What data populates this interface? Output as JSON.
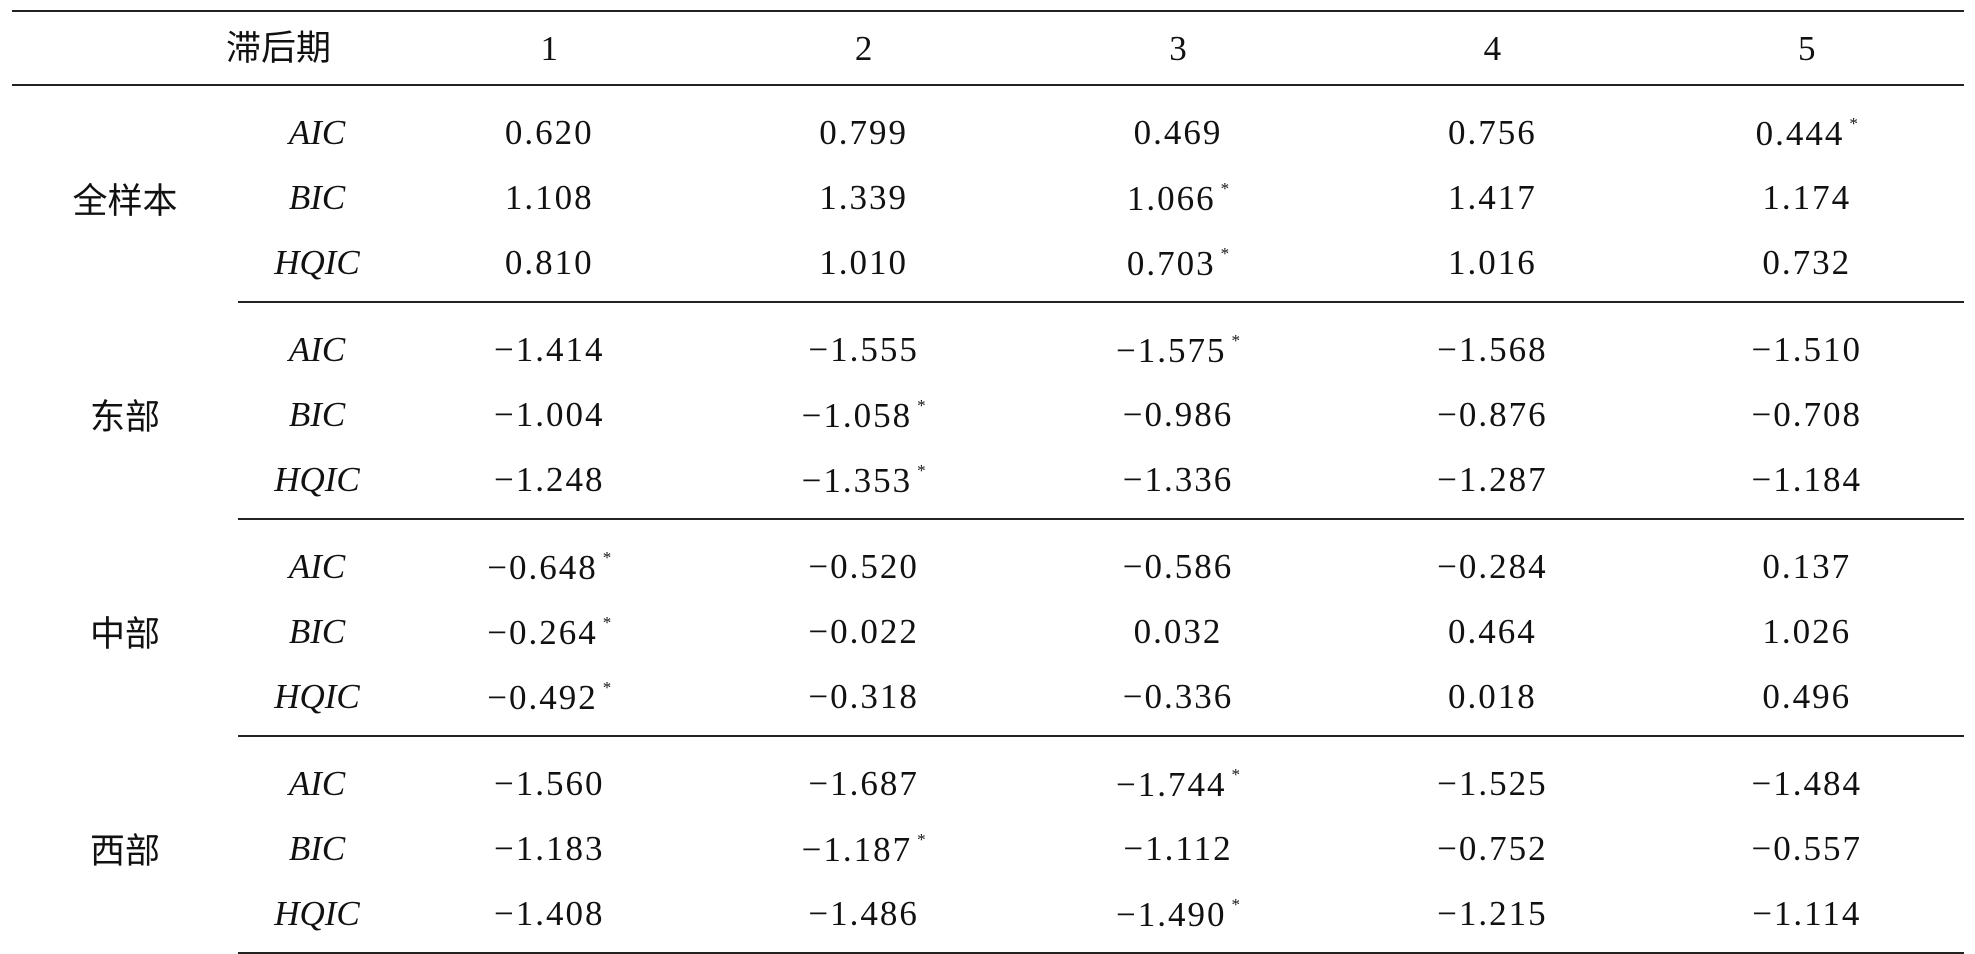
{
  "header": {
    "lag_label": "滞后期",
    "lags": [
      "1",
      "2",
      "3",
      "4",
      "5"
    ]
  },
  "groups": [
    {
      "region": "全样本",
      "rows": [
        {
          "criterion": "AIC",
          "values": [
            {
              "v": "0.620",
              "star": ""
            },
            {
              "v": "0.799",
              "star": ""
            },
            {
              "v": "0.469",
              "star": ""
            },
            {
              "v": "0.756",
              "star": ""
            },
            {
              "v": "0.444",
              "star": "*"
            }
          ]
        },
        {
          "criterion": "BIC",
          "values": [
            {
              "v": "1.108",
              "star": ""
            },
            {
              "v": "1.339",
              "star": ""
            },
            {
              "v": "1.066",
              "star": "*"
            },
            {
              "v": "1.417",
              "star": ""
            },
            {
              "v": "1.174",
              "star": ""
            }
          ]
        },
        {
          "criterion": "HQIC",
          "values": [
            {
              "v": "0.810",
              "star": ""
            },
            {
              "v": "1.010",
              "star": ""
            },
            {
              "v": "0.703",
              "star": "*"
            },
            {
              "v": "1.016",
              "star": ""
            },
            {
              "v": "0.732",
              "star": ""
            }
          ]
        }
      ]
    },
    {
      "region": "东部",
      "rows": [
        {
          "criterion": "AIC",
          "values": [
            {
              "v": "−1.414",
              "star": ""
            },
            {
              "v": "−1.555",
              "star": ""
            },
            {
              "v": "−1.575",
              "star": "*"
            },
            {
              "v": "−1.568",
              "star": ""
            },
            {
              "v": "−1.510",
              "star": ""
            }
          ]
        },
        {
          "criterion": "BIC",
          "values": [
            {
              "v": "−1.004",
              "star": ""
            },
            {
              "v": "−1.058",
              "star": "*"
            },
            {
              "v": "−0.986",
              "star": ""
            },
            {
              "v": "−0.876",
              "star": ""
            },
            {
              "v": "−0.708",
              "star": ""
            }
          ]
        },
        {
          "criterion": "HQIC",
          "values": [
            {
              "v": "−1.248",
              "star": ""
            },
            {
              "v": "−1.353",
              "star": "*"
            },
            {
              "v": "−1.336",
              "star": ""
            },
            {
              "v": "−1.287",
              "star": ""
            },
            {
              "v": "−1.184",
              "star": ""
            }
          ]
        }
      ]
    },
    {
      "region": "中部",
      "rows": [
        {
          "criterion": "AIC",
          "values": [
            {
              "v": "−0.648",
              "star": "*"
            },
            {
              "v": "−0.520",
              "star": ""
            },
            {
              "v": "−0.586",
              "star": ""
            },
            {
              "v": "−0.284",
              "star": ""
            },
            {
              "v": "0.137",
              "star": ""
            }
          ]
        },
        {
          "criterion": "BIC",
          "values": [
            {
              "v": "−0.264",
              "star": "*"
            },
            {
              "v": "−0.022",
              "star": ""
            },
            {
              "v": "0.032",
              "star": ""
            },
            {
              "v": "0.464",
              "star": ""
            },
            {
              "v": "1.026",
              "star": ""
            }
          ]
        },
        {
          "criterion": "HQIC",
          "values": [
            {
              "v": "−0.492",
              "star": "*"
            },
            {
              "v": "−0.318",
              "star": ""
            },
            {
              "v": "−0.336",
              "star": ""
            },
            {
              "v": "0.018",
              "star": ""
            },
            {
              "v": "0.496",
              "star": ""
            }
          ]
        }
      ]
    },
    {
      "region": "西部",
      "rows": [
        {
          "criterion": "AIC",
          "values": [
            {
              "v": "−1.560",
              "star": ""
            },
            {
              "v": "−1.687",
              "star": ""
            },
            {
              "v": "−1.744",
              "star": "*"
            },
            {
              "v": "−1.525",
              "star": ""
            },
            {
              "v": "−1.484",
              "star": ""
            }
          ]
        },
        {
          "criterion": "BIC",
          "values": [
            {
              "v": "−1.183",
              "star": ""
            },
            {
              "v": "−1.187",
              "star": "*"
            },
            {
              "v": "−1.112",
              "star": ""
            },
            {
              "v": "−0.752",
              "star": ""
            },
            {
              "v": "−0.557",
              "star": ""
            }
          ]
        },
        {
          "criterion": "HQIC",
          "values": [
            {
              "v": "−1.408",
              "star": ""
            },
            {
              "v": "−1.486",
              "star": ""
            },
            {
              "v": "−1.490",
              "star": "*"
            },
            {
              "v": "−1.215",
              "star": ""
            },
            {
              "v": "−1.114",
              "star": ""
            }
          ]
        }
      ]
    }
  ]
}
